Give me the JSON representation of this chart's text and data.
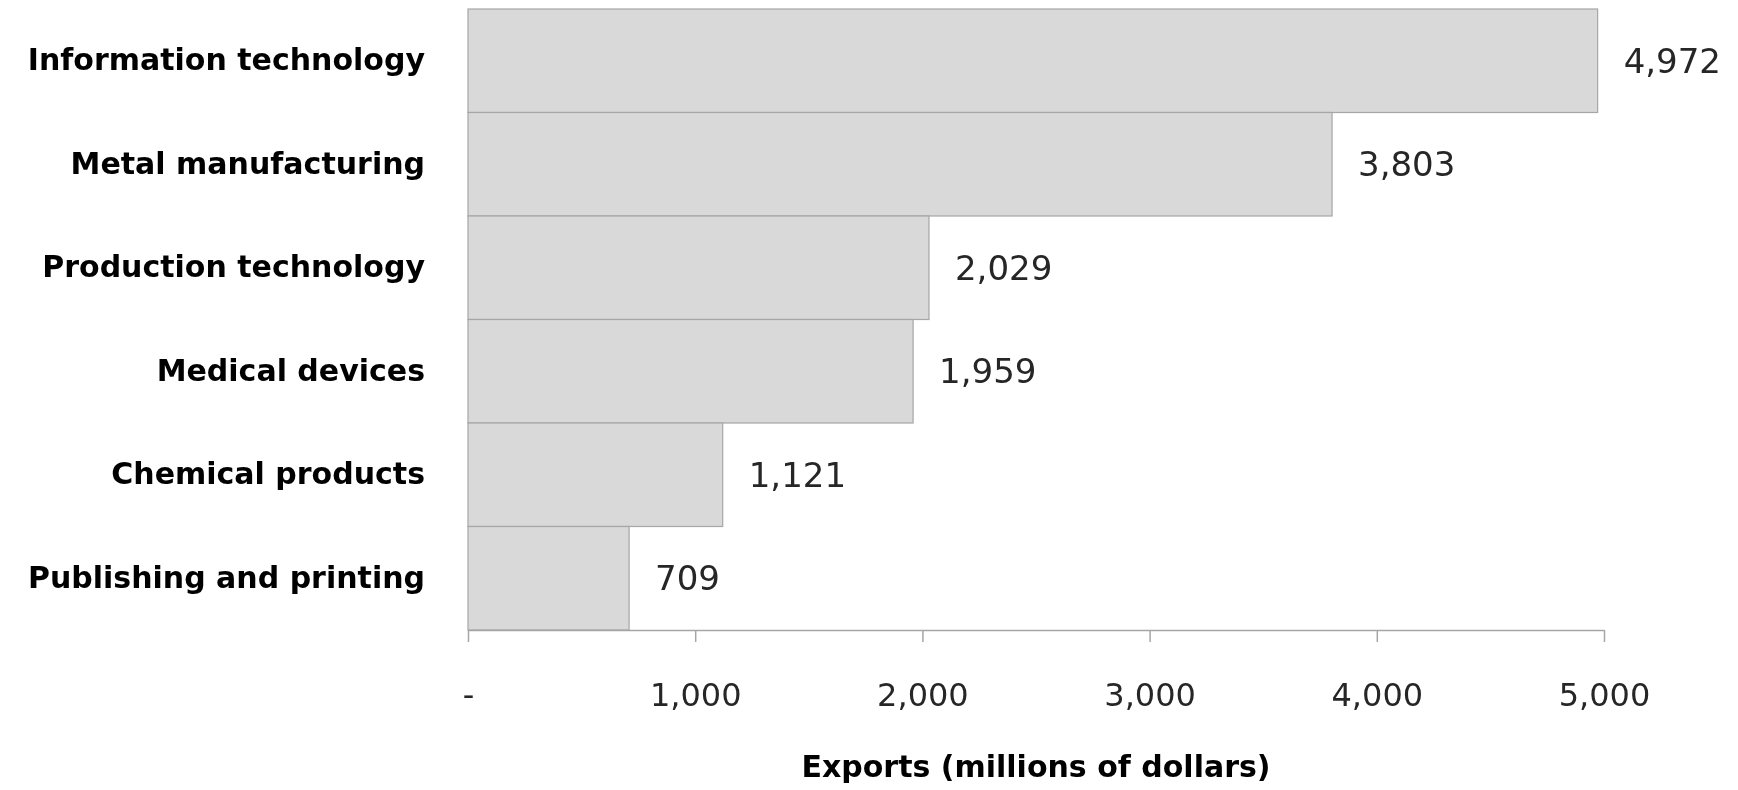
{
  "chart_data": {
    "type": "bar",
    "orientation": "horizontal",
    "xlabel": "Exports (millions of dollars)",
    "categories": [
      "Information technology",
      "Metal manufacturing",
      "Production technology",
      "Medical devices",
      "Chemical products",
      "Publishing and printing"
    ],
    "values": [
      4972,
      3803,
      2029,
      1959,
      1121,
      709
    ],
    "color": "#d9d9d9",
    "value_labels": [
      "4,972",
      "3,803",
      "2,029",
      "1,959",
      "1,121",
      "709"
    ],
    "xlim": [
      0,
      5000
    ],
    "xticks": [
      {
        "value": 0,
        "label": "-"
      },
      {
        "value": 1000,
        "label": "1,000"
      },
      {
        "value": 2000,
        "label": "2,000"
      },
      {
        "value": 3000,
        "label": "3,000"
      },
      {
        "value": 4000,
        "label": "4,000"
      },
      {
        "value": 5000,
        "label": "5,000"
      }
    ]
  }
}
